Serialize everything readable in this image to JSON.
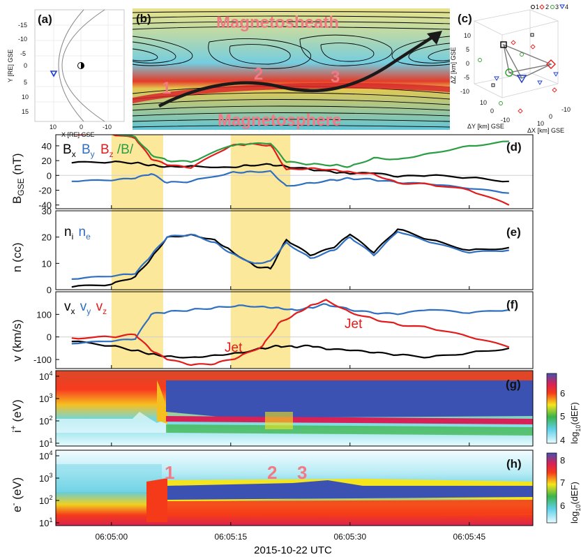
{
  "panels": {
    "a": {
      "label": "(a)",
      "xlabel": "X [RE] GSE",
      "ylabel": "Y [RE] GSE",
      "xticks": [
        "10",
        "0",
        "-10"
      ],
      "yticks": [
        "-15",
        "-10",
        "-5",
        "0",
        "5",
        "10",
        "15"
      ]
    },
    "b": {
      "label": "(b)",
      "top_region": "Magnetosheath",
      "bottom_region": "Magnetosphere",
      "crossings": [
        "1",
        "2",
        "3"
      ]
    },
    "c": {
      "label": "(c)",
      "legend": [
        "1",
        "2",
        "3",
        "4"
      ],
      "legend_colors": [
        "#000000",
        "#e21b1b",
        "#2ca02c",
        "#2b5fd9"
      ],
      "zlabel": "ΔZ [km] GSE",
      "ylabel": "ΔY [km] GSE",
      "xlabel": "ΔX [km] GSE",
      "zticks": [
        "10",
        "5",
        "0",
        "-5",
        "-10"
      ],
      "yticks": [
        "10",
        "0",
        "-10"
      ],
      "xticks": [
        "-10",
        "0",
        "10"
      ]
    },
    "d": {
      "label": "(d)",
      "ylabel": "B",
      "ylabel_sub": "GSE",
      "ylabel_unit": " (nT)",
      "legend": [
        {
          "t": "B",
          "s": "x",
          "c": "#000000"
        },
        {
          "t": "B",
          "s": "y",
          "c": "#2f6fc1"
        },
        {
          "t": "B",
          "s": "z",
          "c": "#e21b1b"
        },
        {
          "t": "/B/",
          "s": "",
          "c": "#2a9d45"
        }
      ]
    },
    "e": {
      "label": "(e)",
      "ylabel": "n (cc)",
      "legend": [
        {
          "t": "n",
          "s": "i",
          "c": "#000000"
        },
        {
          "t": "n",
          "s": "e",
          "c": "#2f6fc1"
        }
      ]
    },
    "f": {
      "label": "(f)",
      "ylabel": "v (km/s)",
      "jet_label": "Jet",
      "legend": [
        {
          "t": "v",
          "s": "x",
          "c": "#000000"
        },
        {
          "t": "v",
          "s": "y",
          "c": "#2f6fc1"
        },
        {
          "t": "v",
          "s": "z",
          "c": "#e21b1b"
        }
      ]
    },
    "g": {
      "label": "(g)",
      "ylabel_main": "i",
      "ylabel_sup": "+",
      "ylabel_unit": " (eV)",
      "cbar_label": "log",
      "cbar_sub": "10",
      "cbar_unit": "(dEF)",
      "cbar_ticks": [
        "6",
        "5",
        "4"
      ]
    },
    "h": {
      "label": "(h)",
      "ylabel_main": "e",
      "ylabel_sup": "-",
      "ylabel_unit": " (eV)",
      "cbar_label": "log",
      "cbar_sub": "10",
      "cbar_unit": "(dEF)",
      "cbar_ticks": [
        "8",
        "7",
        "6"
      ],
      "crossings": [
        "1",
        "2",
        "3"
      ]
    }
  },
  "chart_data": [
    {
      "type": "line",
      "panel": "d",
      "x": [
        "06:04:55",
        "06:05:00",
        "06:05:03",
        "06:05:05",
        "06:05:07",
        "06:05:10",
        "06:05:15",
        "06:05:17",
        "06:05:20",
        "06:05:22",
        "06:05:25",
        "06:05:28",
        "06:05:30",
        "06:05:33",
        "06:05:36",
        "06:05:40",
        "06:05:45",
        "06:05:50"
      ],
      "ylim": [
        -45,
        55
      ],
      "yticks": [
        -40,
        -20,
        0,
        20,
        40
      ],
      "series": [
        {
          "name": "B_x",
          "color": "#000000",
          "values": [
            17,
            18,
            17,
            14,
            12,
            13,
            11,
            14,
            15,
            12,
            8,
            4,
            2,
            3,
            -2,
            0,
            -3,
            -8
          ]
        },
        {
          "name": "B_y",
          "color": "#2f6fc1",
          "values": [
            -8,
            -7,
            -4,
            2,
            -10,
            -8,
            4,
            5,
            6,
            -14,
            -10,
            -6,
            -4,
            -6,
            -10,
            -12,
            -18,
            -24
          ]
        },
        {
          "name": "B_z",
          "color": "#e21b1b",
          "values": [
            56,
            56,
            50,
            22,
            14,
            10,
            40,
            42,
            41,
            8,
            10,
            8,
            5,
            2,
            -10,
            -12,
            -20,
            -40
          ]
        },
        {
          "name": "/B/",
          "color": "#2a9d45",
          "values": [
            58,
            58,
            52,
            28,
            20,
            18,
            40,
            42,
            43,
            18,
            15,
            14,
            12,
            24,
            22,
            30,
            40,
            46
          ]
        }
      ]
    },
    {
      "type": "line",
      "panel": "e",
      "x": [
        "06:04:55",
        "06:05:00",
        "06:05:03",
        "06:05:05",
        "06:05:07",
        "06:05:10",
        "06:05:13",
        "06:05:15",
        "06:05:18",
        "06:05:20",
        "06:05:22",
        "06:05:25",
        "06:05:28",
        "06:05:30",
        "06:05:33",
        "06:05:36",
        "06:05:40",
        "06:05:45",
        "06:05:50"
      ],
      "ylim": [
        0,
        30
      ],
      "yticks": [
        0,
        10,
        20,
        30
      ],
      "series": [
        {
          "name": "n_i",
          "color": "#000000",
          "values": [
            1,
            2,
            5,
            12,
            20,
            21,
            19,
            15,
            9,
            8,
            19,
            13,
            16,
            21,
            14,
            23,
            19,
            15,
            16
          ]
        },
        {
          "name": "n_e",
          "color": "#2f6fc1",
          "values": [
            4,
            5,
            6,
            13,
            20,
            21,
            18,
            14,
            10,
            11,
            18,
            12,
            15,
            20,
            13,
            22,
            18,
            14,
            15
          ]
        }
      ]
    },
    {
      "type": "line",
      "panel": "f",
      "x": [
        "06:04:55",
        "06:05:00",
        "06:05:03",
        "06:05:05",
        "06:05:07",
        "06:05:10",
        "06:05:13",
        "06:05:16",
        "06:05:19",
        "06:05:21",
        "06:05:23",
        "06:05:25",
        "06:05:27",
        "06:05:30",
        "06:05:33",
        "06:05:36",
        "06:05:40",
        "06:05:45",
        "06:05:50"
      ],
      "ylim": [
        -140,
        200
      ],
      "yticks": [
        -100,
        0,
        100
      ],
      "series": [
        {
          "name": "v_x",
          "color": "#000000",
          "values": [
            -20,
            -40,
            -60,
            -75,
            -85,
            -90,
            -80,
            -70,
            -50,
            -40,
            -45,
            -40,
            -55,
            -60,
            -70,
            -80,
            -90,
            -70,
            -50
          ]
        },
        {
          "name": "v_y",
          "color": "#2f6fc1",
          "values": [
            -30,
            -20,
            -10,
            100,
            110,
            120,
            130,
            140,
            135,
            130,
            120,
            130,
            145,
            120,
            105,
            100,
            120,
            105,
            120
          ]
        },
        {
          "name": "v_z",
          "color": "#e21b1b",
          "values": [
            -5,
            0,
            10,
            -60,
            -100,
            -125,
            -120,
            -90,
            -40,
            60,
            100,
            140,
            165,
            110,
            80,
            55,
            40,
            0,
            -45
          ]
        }
      ]
    }
  ],
  "time_axis": {
    "ticks": [
      "06:05:00",
      "06:05:15",
      "06:05:30",
      "06:05:45"
    ],
    "label": "2015-10-22 UTC",
    "start_s": -7,
    "end_s": 53,
    "highlights_s": [
      [
        0,
        6.5
      ],
      [
        15,
        22.5
      ]
    ]
  },
  "spectrogram_yticks": [
    {
      "b": "10",
      "e": "1"
    },
    {
      "b": "10",
      "e": "2"
    },
    {
      "b": "10",
      "e": "3"
    },
    {
      "b": "10",
      "e": "4"
    }
  ]
}
